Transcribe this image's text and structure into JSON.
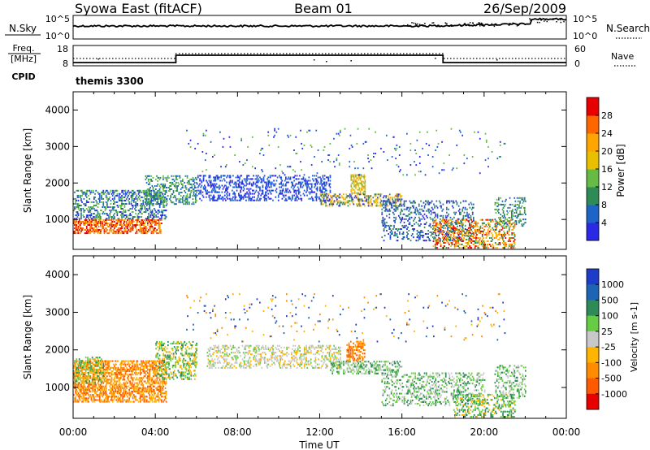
{
  "header": {
    "station": "Syowa East (fitACF)",
    "beam": "Beam 01",
    "date": "26/Sep/2009"
  },
  "noise_panel": {
    "left_label": "N.Sky",
    "left_ticks": [
      "10^5",
      "10^0"
    ],
    "right_label": "N.Search",
    "right_ticks": [
      "10^5",
      "10^0"
    ]
  },
  "freq_panel": {
    "left_label_1": "Freq.",
    "left_label_2": "[MHz]",
    "left_ticks": [
      "18",
      "8"
    ],
    "cpid_label": "CPID",
    "right_label": "Nave",
    "right_ticks": [
      "60",
      "0"
    ],
    "cpid_name": "themis 3300"
  },
  "colors": {
    "power": [
      "#2a2ae6",
      "#1e64c8",
      "#2e8b57",
      "#66bb44",
      "#e8c000",
      "#ffa500",
      "#ff6600",
      "#e60000"
    ],
    "velocity": [
      "#1e3cc8",
      "#1e64b4",
      "#2e8b57",
      "#66cc44",
      "#c8c8c8",
      "#ffb400",
      "#ff8c00",
      "#ff5a00",
      "#e60000"
    ]
  },
  "chart_data": [
    {
      "type": "heatmap",
      "name": "power",
      "ylabel": "Slant Range [km]",
      "yticks": [
        1000,
        2000,
        3000,
        4000
      ],
      "ylim": [
        180,
        4500
      ],
      "xlim": [
        0,
        24
      ],
      "colorbar": {
        "label": "Power [dB]",
        "ticks": [
          "4",
          "8",
          "12",
          "16",
          "20",
          "24",
          "28"
        ]
      },
      "scatter_regions": [
        {
          "t0": 0.0,
          "t1": 4.3,
          "r0": 600,
          "r1": 1000,
          "levels": [
            5,
            6,
            7
          ],
          "density": 0.55
        },
        {
          "t0": 0.0,
          "t1": 4.5,
          "r0": 1000,
          "r1": 1800,
          "levels": [
            0,
            1,
            2,
            3
          ],
          "density": 0.35
        },
        {
          "t0": 3.5,
          "t1": 6.0,
          "r0": 1400,
          "r1": 2200,
          "levels": [
            1,
            2,
            3
          ],
          "density": 0.3
        },
        {
          "t0": 6.0,
          "t1": 12.5,
          "r0": 1500,
          "r1": 2200,
          "levels": [
            0,
            1
          ],
          "density": 0.3
        },
        {
          "t0": 12.0,
          "t1": 16.0,
          "r0": 1350,
          "r1": 1700,
          "levels": [
            0,
            2,
            4,
            5
          ],
          "density": 0.4
        },
        {
          "t0": 13.5,
          "t1": 14.2,
          "r0": 1700,
          "r1": 2200,
          "levels": [
            3,
            4,
            5
          ],
          "density": 0.5
        },
        {
          "t0": 15.0,
          "t1": 19.5,
          "r0": 400,
          "r1": 1500,
          "levels": [
            0,
            1,
            2
          ],
          "density": 0.22
        },
        {
          "t0": 17.5,
          "t1": 21.5,
          "r0": 200,
          "r1": 1000,
          "levels": [
            2,
            4,
            5,
            6,
            7
          ],
          "density": 0.35
        },
        {
          "t0": 20.5,
          "t1": 22.0,
          "r0": 800,
          "r1": 1600,
          "levels": [
            1,
            2,
            3
          ],
          "density": 0.25
        },
        {
          "t0": 5.5,
          "t1": 21.0,
          "r0": 2200,
          "r1": 3500,
          "levels": [
            0,
            1,
            3
          ],
          "density": 0.02
        }
      ]
    },
    {
      "type": "heatmap",
      "name": "velocity",
      "ylabel": "Slant Range [km]",
      "yticks": [
        1000,
        2000,
        3000,
        4000
      ],
      "ylim": [
        180,
        4500
      ],
      "xlim": [
        0,
        24
      ],
      "xticks": [
        "00:00",
        "04:00",
        "08:00",
        "12:00",
        "16:00",
        "20:00",
        "00:00"
      ],
      "xlabel": "Time UT",
      "colorbar": {
        "label": "Velocity [m s-1]",
        "ticks": [
          "1000",
          "500",
          "100",
          "25",
          "-25",
          "-100",
          "-500",
          "-1000"
        ]
      },
      "scatter_regions": [
        {
          "t0": 0.0,
          "t1": 4.5,
          "r0": 600,
          "r1": 1700,
          "levels": [
            5,
            6,
            7
          ],
          "density": 0.5
        },
        {
          "t0": 0.0,
          "t1": 1.5,
          "r0": 1100,
          "r1": 1800,
          "levels": [
            2,
            3,
            5
          ],
          "density": 0.35
        },
        {
          "t0": 4.0,
          "t1": 6.0,
          "r0": 1200,
          "r1": 2200,
          "levels": [
            2,
            3,
            5
          ],
          "density": 0.3
        },
        {
          "t0": 6.5,
          "t1": 13.0,
          "r0": 1500,
          "r1": 2100,
          "levels": [
            4,
            4,
            3,
            5
          ],
          "density": 0.3
        },
        {
          "t0": 12.5,
          "t1": 16.0,
          "r0": 1350,
          "r1": 1700,
          "levels": [
            2,
            3,
            4
          ],
          "density": 0.35
        },
        {
          "t0": 13.3,
          "t1": 14.2,
          "r0": 1700,
          "r1": 2200,
          "levels": [
            6,
            7,
            5
          ],
          "density": 0.5
        },
        {
          "t0": 15.0,
          "t1": 20.0,
          "r0": 500,
          "r1": 1400,
          "levels": [
            2,
            3,
            4
          ],
          "density": 0.25
        },
        {
          "t0": 18.5,
          "t1": 21.5,
          "r0": 200,
          "r1": 800,
          "levels": [
            3,
            5,
            2
          ],
          "density": 0.3
        },
        {
          "t0": 20.5,
          "t1": 22.0,
          "r0": 700,
          "r1": 1600,
          "levels": [
            2,
            3,
            4
          ],
          "density": 0.25
        },
        {
          "t0": 5.5,
          "t1": 21.0,
          "r0": 2200,
          "r1": 3500,
          "levels": [
            0,
            1,
            5,
            6
          ],
          "density": 0.02
        }
      ]
    }
  ]
}
